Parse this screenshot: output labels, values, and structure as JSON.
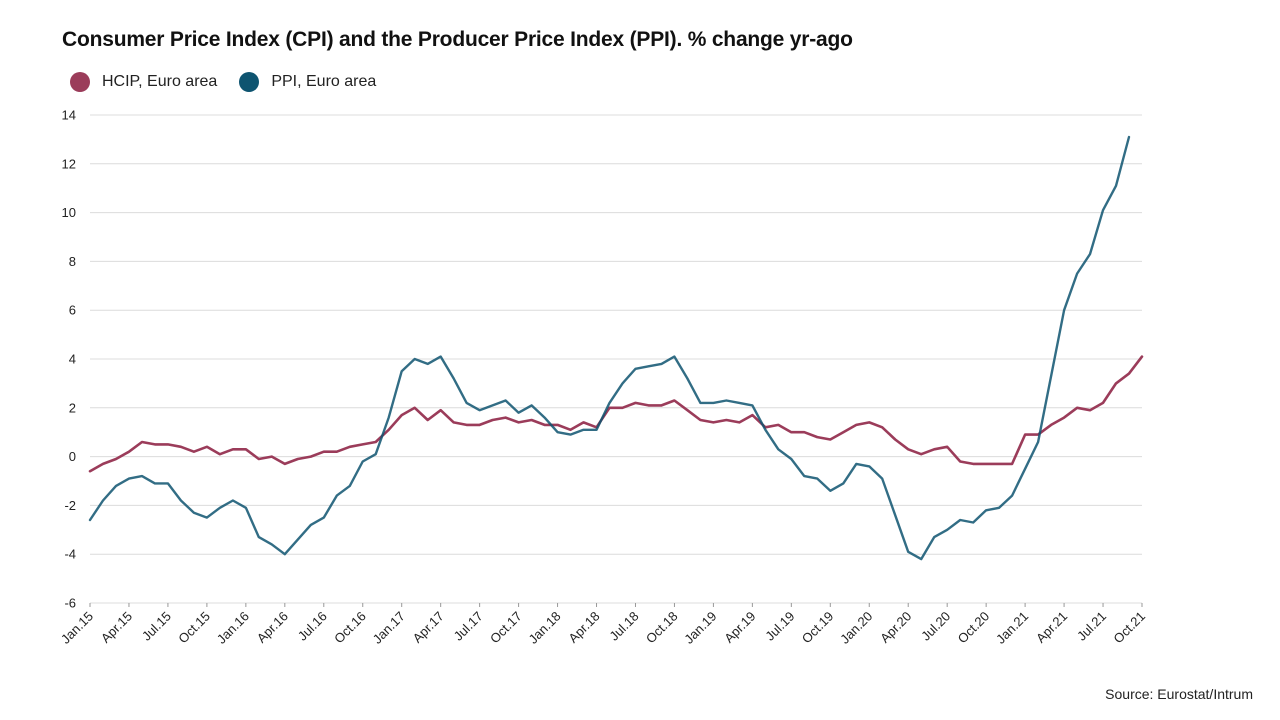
{
  "chart_data": {
    "type": "line",
    "title": "Consumer Price Index (CPI) and the Producer Price Index (PPI). % change yr-ago",
    "xlabel": "",
    "ylabel": "",
    "ylim": [
      -6,
      14
    ],
    "yticks": [
      14,
      12,
      10,
      8,
      6,
      4,
      2,
      0,
      -2,
      -4,
      -6
    ],
    "grid": true,
    "legend_position": "top-left",
    "x_tick_labels": [
      "Jan.15",
      "Apr.15",
      "Jul.15",
      "Oct.15",
      "Jan.16",
      "Apr.16",
      "Jul.16",
      "Oct.16",
      "Jan.17",
      "Apr.17",
      "Jul.17",
      "Oct.17",
      "Jan.18",
      "Apr.18",
      "Jul.18",
      "Oct.18",
      "Jan.19",
      "Apr.19",
      "Jul.19",
      "Oct.19",
      "Jan.20",
      "Apr.20",
      "Jul.20",
      "Oct.20",
      "Jan.21",
      "Apr.21",
      "Jul.21",
      "Oct.21"
    ],
    "series": [
      {
        "name": "HCIP, Euro area",
        "color": "#9b3c5a",
        "values": [
          -0.6,
          -0.3,
          -0.1,
          0.2,
          0.6,
          0.5,
          0.5,
          0.4,
          0.2,
          0.4,
          0.1,
          0.3,
          0.3,
          -0.1,
          0.0,
          -0.3,
          -0.1,
          0.0,
          0.2,
          0.2,
          0.4,
          0.5,
          0.6,
          1.1,
          1.7,
          2.0,
          1.5,
          1.9,
          1.4,
          1.3,
          1.3,
          1.5,
          1.6,
          1.4,
          1.5,
          1.3,
          1.3,
          1.1,
          1.4,
          1.2,
          2.0,
          2.0,
          2.2,
          2.1,
          2.1,
          2.3,
          1.9,
          1.5,
          1.4,
          1.5,
          1.4,
          1.7,
          1.2,
          1.3,
          1.0,
          1.0,
          0.8,
          0.7,
          1.0,
          1.3,
          1.4,
          1.2,
          0.7,
          0.3,
          0.1,
          0.3,
          0.4,
          -0.2,
          -0.3,
          -0.3,
          -0.3,
          -0.3,
          0.9,
          0.9,
          1.3,
          1.6,
          2.0,
          1.9,
          2.2,
          3.0,
          3.4,
          4.1
        ]
      },
      {
        "name": "PPI, Euro area",
        "color": "#0e5470",
        "values": [
          -2.6,
          -1.8,
          -1.2,
          -0.9,
          -0.8,
          -1.1,
          -1.1,
          -1.8,
          -2.3,
          -2.5,
          -2.1,
          -1.8,
          -2.1,
          -3.3,
          -3.6,
          -4.0,
          -3.4,
          -2.8,
          -2.5,
          -1.6,
          -1.2,
          -0.2,
          0.1,
          1.6,
          3.5,
          4.0,
          3.8,
          4.1,
          3.2,
          2.2,
          1.9,
          2.1,
          2.3,
          1.8,
          2.1,
          1.6,
          1.0,
          0.9,
          1.1,
          1.1,
          2.2,
          3.0,
          3.6,
          3.7,
          3.8,
          4.1,
          3.2,
          2.2,
          2.2,
          2.3,
          2.2,
          2.1,
          1.1,
          0.3,
          -0.1,
          -0.8,
          -0.9,
          -1.4,
          -1.1,
          -0.3,
          -0.4,
          -0.9,
          -2.4,
          -3.9,
          -4.2,
          -3.3,
          -3.0,
          -2.6,
          -2.7,
          -2.2,
          -2.1,
          -1.6,
          -0.5,
          0.6,
          3.3,
          6.0,
          7.5,
          8.3,
          10.1,
          11.1,
          13.1
        ]
      }
    ]
  },
  "source": "Source: Eurostat/Intrum"
}
